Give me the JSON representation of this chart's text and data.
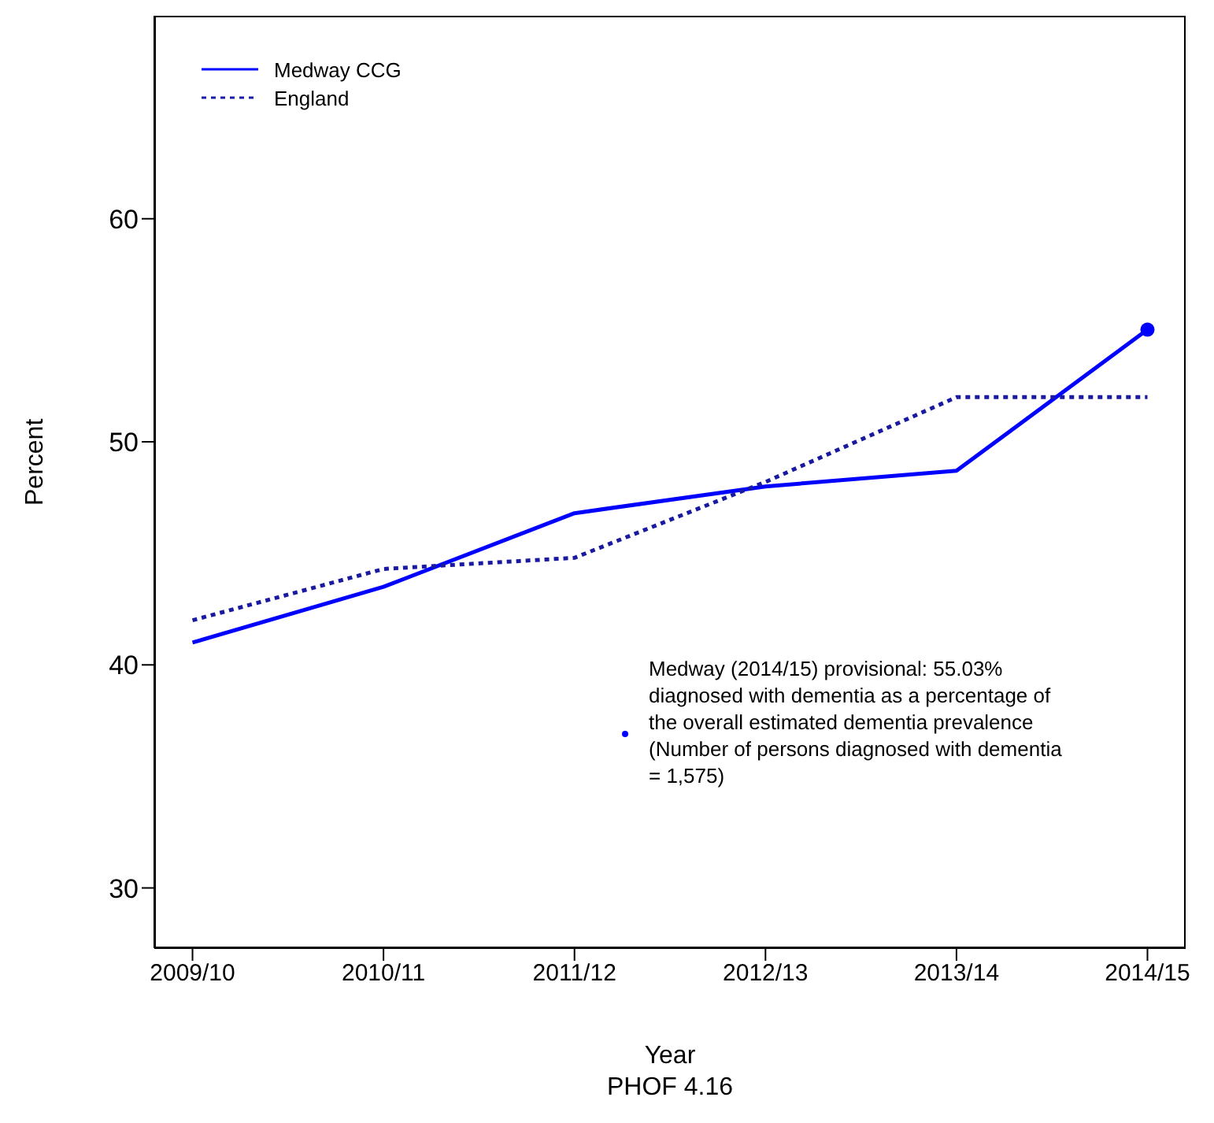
{
  "chart_data": {
    "type": "line",
    "xlabel": "Year",
    "ylabel": "Percent",
    "categories": [
      "2009/10",
      "2010/11",
      "2011/12",
      "2012/13",
      "2013/14",
      "2014/15"
    ],
    "series": [
      {
        "name": "Medway CCG",
        "color": "#0000ff",
        "line_style": "solid",
        "marker": "none",
        "values": [
          41.0,
          43.5,
          46.8,
          48.0,
          48.7,
          55.03
        ]
      },
      {
        "name": "England",
        "color": "#1a1aa0",
        "line_style": "dotted",
        "marker": "none",
        "values": [
          42.0,
          44.3,
          44.8,
          48.2,
          52.0,
          52.0
        ]
      },
      {
        "type": "scatter",
        "color": "#0000ff",
        "marker": "circle",
        "x": [
          "2014/15"
        ],
        "values": [
          55.03
        ]
      }
    ],
    "ylim": [
      27.3,
      69.1
    ],
    "yticks": [
      30,
      40,
      50,
      60
    ],
    "grid": false,
    "legend": "top left",
    "annotations": [
      "Medway (2014/15) provisional: 55.03% diagnosed with dementia as a percentage of the overall estimated dementia prevalence (Number of persons diagnosed with dementia = 1,575)",
      "PHOF 4.16"
    ]
  }
}
